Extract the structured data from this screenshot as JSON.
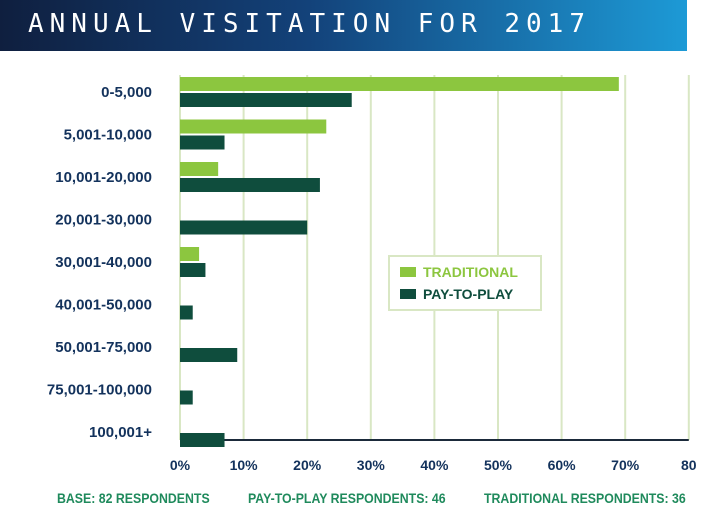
{
  "header": {
    "title": "ANNUAL VISITATION FOR 2017"
  },
  "colors": {
    "traditional": "#8cc63f",
    "pay_to_play": "#0f4d3d",
    "grid": "#d9e7c4",
    "text": "#13325c",
    "footer": "#1f8a5c"
  },
  "chart_data": {
    "type": "bar",
    "orientation": "horizontal",
    "categories": [
      "0-5,000",
      "5,001-10,000",
      "10,001-20,000",
      "20,001-30,000",
      "30,001-40,000",
      "40,001-50,000",
      "50,001-75,000",
      "75,001-100,000",
      "100,001+"
    ],
    "series": [
      {
        "name": "TRADITIONAL",
        "values": [
          69,
          23,
          6,
          0,
          3,
          0,
          0,
          0,
          0
        ]
      },
      {
        "name": "PAY-TO-PLAY",
        "values": [
          27,
          7,
          22,
          20,
          4,
          2,
          9,
          2,
          7
        ]
      }
    ],
    "xlim": [
      0,
      80
    ],
    "ticks": [
      "0%",
      "10%",
      "20%",
      "30%",
      "40%",
      "50%",
      "60%",
      "70%",
      "80"
    ],
    "grid": true,
    "legend_position": "center-right"
  },
  "footer": {
    "base": "BASE: 82 RESPONDENTS",
    "pay_to_play": "PAY-TO-PLAY RESPONDENTS: 46",
    "traditional": "TRADITIONAL RESPONDENTS: 36"
  }
}
